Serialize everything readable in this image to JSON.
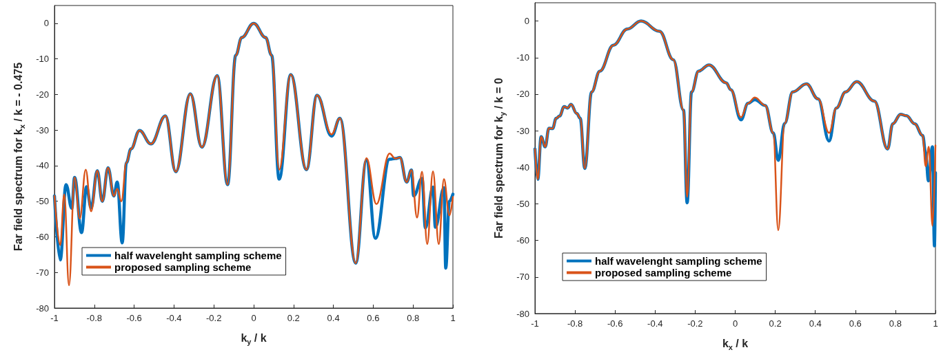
{
  "chart_data": [
    {
      "type": "line",
      "xlabel": "k$_{y}$ / k",
      "ylabel": "Far field spectrum for k$_{x}$ / k = - 0.475",
      "xlim": [
        -1,
        1
      ],
      "xticks": [
        -1,
        -0.8,
        -0.6,
        -0.4,
        -0.2,
        0,
        0.2,
        0.4,
        0.6,
        0.8,
        1
      ],
      "ylim": [
        -80,
        5
      ],
      "yticks": [
        -80,
        -70,
        -60,
        -50,
        -40,
        -30,
        -20,
        -10,
        0
      ],
      "grid": false,
      "legend": "bottom left",
      "marker": "none",
      "line_style": "solid",
      "series": [
        {
          "name": "half wavelenght sampling scheme",
          "color": "#0072bd",
          "x": [
            -1,
            -0.971,
            -0.942,
            -0.913,
            -0.899,
            -0.864,
            -0.839,
            -0.816,
            -0.785,
            -0.76,
            -0.731,
            -0.702,
            -0.685,
            -0.66,
            -0.639,
            -0.616,
            -0.573,
            -0.516,
            -0.443,
            -0.391,
            -0.318,
            -0.26,
            -0.183,
            -0.131,
            -0.09,
            -0.06,
            0,
            0.06,
            0.09,
            0.128,
            0.186,
            0.265,
            0.318,
            0.391,
            0.433,
            0.512,
            0.566,
            0.611,
            0.682,
            0.711,
            0.734,
            0.768,
            0.792,
            0.803,
            0.845,
            0.862,
            0.9,
            0.912,
            0.955,
            0.964,
            0.982,
            1
          ],
          "values": [
            -48.5,
            -66.5,
            -45.3,
            -52,
            -43.3,
            -58.8,
            -45.9,
            -51.9,
            -41.4,
            -50,
            -40.6,
            -48.5,
            -44.6,
            -61.7,
            -39.2,
            -35.3,
            -30.1,
            -33.9,
            -26,
            -41.7,
            -19.8,
            -34.8,
            -14.7,
            -45.3,
            -9,
            -4,
            0,
            -4,
            -9,
            -43.8,
            -14.4,
            -41.1,
            -20.2,
            -31.7,
            -26.7,
            -67.4,
            -38.5,
            -60.4,
            -38.2,
            -38,
            -37.7,
            -44.6,
            -41.2,
            -48.5,
            -43.6,
            -57.5,
            -46,
            -57.3,
            -46.2,
            -68.8,
            -50,
            -48
          ]
        },
        {
          "name": "proposed sampling scheme",
          "color": "#d95319",
          "x": [
            -1,
            -0.971,
            -0.951,
            -0.927,
            -0.899,
            -0.873,
            -0.843,
            -0.816,
            -0.785,
            -0.76,
            -0.731,
            -0.702,
            -0.685,
            -0.664,
            -0.639,
            -0.616,
            -0.573,
            -0.516,
            -0.443,
            -0.391,
            -0.318,
            -0.26,
            -0.183,
            -0.131,
            -0.09,
            -0.06,
            0,
            0.06,
            0.09,
            0.128,
            0.186,
            0.265,
            0.318,
            0.391,
            0.433,
            0.512,
            0.566,
            0.616,
            0.682,
            0.711,
            0.734,
            0.768,
            0.792,
            0.82,
            0.845,
            0.871,
            0.9,
            0.929,
            0.955,
            0.982,
            1
          ],
          "values": [
            -48.5,
            -62.3,
            -48.1,
            -73.6,
            -43.3,
            -54.9,
            -41.1,
            -52.8,
            -41.4,
            -50,
            -40.6,
            -48.5,
            -46.5,
            -50,
            -39.2,
            -35.3,
            -30.1,
            -33.9,
            -26,
            -41.7,
            -19.8,
            -34.8,
            -14.7,
            -45.3,
            -9,
            -4,
            0,
            -4,
            -9,
            -41.1,
            -14.4,
            -41.1,
            -20.2,
            -31.2,
            -26.7,
            -67.4,
            -37.9,
            -50.8,
            -36.6,
            -38,
            -37.7,
            -44.6,
            -41.2,
            -54.6,
            -41.7,
            -62,
            -41.6,
            -62,
            -43.8,
            -54,
            -48.8
          ]
        }
      ]
    },
    {
      "type": "line",
      "xlabel": "k$_{x}$ / k",
      "ylabel": "Far field spectrum for k$_{y}$ / k = 0",
      "xlim": [
        -1,
        1
      ],
      "xticks": [
        -1,
        -0.8,
        -0.6,
        -0.4,
        -0.2,
        0,
        0.2,
        0.4,
        0.6,
        0.8,
        1
      ],
      "ylim": [
        -80,
        5
      ],
      "yticks": [
        -80,
        -70,
        -60,
        -50,
        -40,
        -30,
        -20,
        -10,
        0
      ],
      "grid": false,
      "legend": "bottom left",
      "marker": "none",
      "line_style": "solid",
      "series": [
        {
          "name": "half wavelenght sampling scheme",
          "color": "#0072bd",
          "x": [
            -1,
            -0.986,
            -0.969,
            -0.949,
            -0.93,
            -0.912,
            -0.894,
            -0.877,
            -0.854,
            -0.837,
            -0.82,
            -0.791,
            -0.774,
            -0.751,
            -0.717,
            -0.676,
            -0.608,
            -0.539,
            -0.47,
            -0.378,
            -0.309,
            -0.258,
            -0.24,
            -0.218,
            -0.183,
            -0.131,
            -0.045,
            -0.022,
            0.029,
            0.064,
            0.098,
            0.15,
            0.19,
            0.215,
            0.247,
            0.287,
            0.356,
            0.414,
            0.469,
            0.505,
            0.551,
            0.607,
            0.695,
            0.761,
            0.787,
            0.826,
            0.855,
            0.896,
            0.936,
            0.951,
            0.965,
            0.985,
            0.995,
            1
          ],
          "values": [
            -35,
            -43.3,
            -31.6,
            -34.4,
            -29.3,
            -29.4,
            -26.6,
            -26,
            -23.4,
            -23.8,
            -22.8,
            -25.3,
            -26.6,
            -40.3,
            -19.4,
            -13.7,
            -6.6,
            -2.2,
            0,
            -2.8,
            -10.6,
            -24.4,
            -49.7,
            -19.4,
            -13.7,
            -12,
            -16.9,
            -18.8,
            -27,
            -22.5,
            -21.5,
            -23.1,
            -30.6,
            -38.1,
            -28,
            -19.4,
            -17.2,
            -21.3,
            -32.8,
            -23.8,
            -19.4,
            -16.6,
            -21.9,
            -35,
            -28.1,
            -25.5,
            -25.9,
            -28.1,
            -31.3,
            -36,
            -43.7,
            -34.4,
            -61.5,
            -41.5
          ]
        },
        {
          "name": "proposed sampling scheme",
          "color": "#d95319",
          "x": [
            -1,
            -0.986,
            -0.969,
            -0.949,
            -0.93,
            -0.912,
            -0.894,
            -0.877,
            -0.854,
            -0.837,
            -0.82,
            -0.791,
            -0.774,
            -0.751,
            -0.717,
            -0.676,
            -0.608,
            -0.539,
            -0.47,
            -0.378,
            -0.309,
            -0.258,
            -0.24,
            -0.218,
            -0.183,
            -0.131,
            -0.045,
            -0.022,
            0.029,
            0.064,
            0.098,
            0.15,
            0.19,
            0.215,
            0.247,
            0.287,
            0.356,
            0.414,
            0.469,
            0.505,
            0.551,
            0.607,
            0.695,
            0.761,
            0.787,
            0.826,
            0.855,
            0.896,
            0.936,
            0.951,
            0.967,
            0.985,
            1
          ],
          "values": [
            -35,
            -43.3,
            -31.6,
            -34.4,
            -29.3,
            -29.4,
            -26.6,
            -26,
            -23.4,
            -23.8,
            -22.8,
            -25.3,
            -26.6,
            -40.3,
            -19.4,
            -13.7,
            -6.6,
            -2.2,
            0,
            -2.8,
            -10.6,
            -24.4,
            -48.1,
            -19.4,
            -13.7,
            -12,
            -16.9,
            -18.8,
            -26.3,
            -22.5,
            -20.9,
            -23.1,
            -30.6,
            -57.2,
            -28,
            -19.4,
            -17.2,
            -21.3,
            -30.6,
            -23.8,
            -19.4,
            -16.6,
            -21.9,
            -35,
            -28.1,
            -25.5,
            -25.9,
            -28.1,
            -31.3,
            -39.7,
            -34.4,
            -56,
            -34
          ]
        }
      ]
    }
  ]
}
